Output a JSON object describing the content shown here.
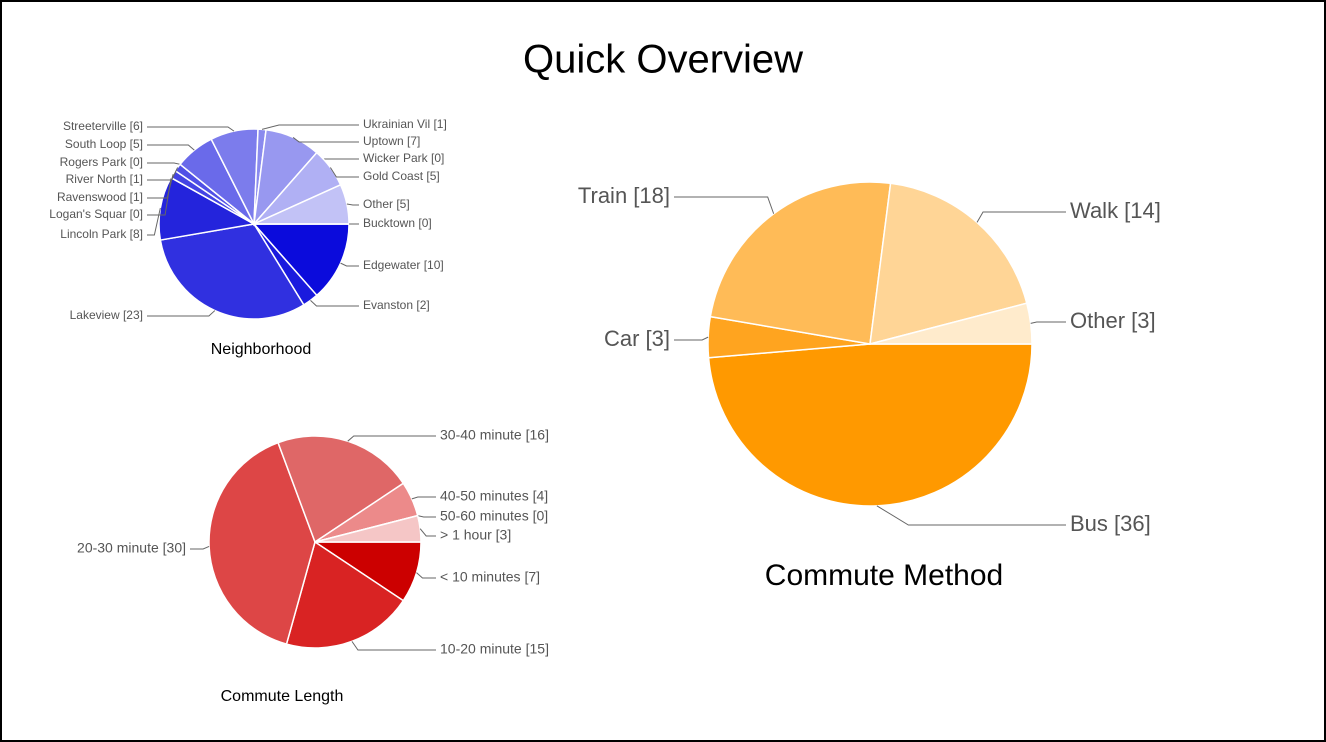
{
  "title": "Quick Overview",
  "chart_data": [
    {
      "type": "pie",
      "title": "Neighborhood",
      "categories": [
        "Edgewater [10]",
        "Evanston [2]",
        "Lakeview [23]",
        "Lincoln Park [8]",
        "Logan's Squar [0]",
        "Ravenswood [1]",
        "River North [1]",
        "Rogers Park [0]",
        "South Loop [5]",
        "Streeterville [6]",
        "Ukrainian Vil [1]",
        "Uptown [7]",
        "Wicker Park [0]",
        "Gold Coast [5]",
        "Other [5]",
        "Bucktown [0]"
      ],
      "values": [
        10,
        2,
        23,
        8,
        0,
        1,
        1,
        0,
        5,
        6,
        1,
        7,
        0,
        5,
        5,
        0
      ],
      "colors": [
        "#0b0bdc",
        "#1a1ade",
        "#3030e0",
        "#2424dc",
        "#3a3ae2",
        "#4444e4",
        "#5050e6",
        "#5a5ae8",
        "#6a6aea",
        "#7c7cec",
        "#8a8aee",
        "#9898f0",
        "#a4a4f2",
        "#b0b0f4",
        "#c2c2f6",
        "#d4d4f8"
      ]
    },
    {
      "type": "pie",
      "title": "Commute Method",
      "categories": [
        "Bus [36]",
        "Car [3]",
        "Train [18]",
        "Walk [14]",
        "Other [3]"
      ],
      "values": [
        36,
        3,
        18,
        14,
        3
      ],
      "colors": [
        "#ff9900",
        "#ffa41f",
        "#ffbb57",
        "#ffd596",
        "#ffebcc"
      ]
    },
    {
      "type": "pie",
      "title": "Commute Length",
      "categories": [
        "< 10 minutes [7]",
        "10-20 minute [15]",
        "20-30 minute [30]",
        "30-40 minute [16]",
        "40-50 minutes [4]",
        "50-60 minutes [0]",
        "> 1 hour [3]"
      ],
      "values": [
        7,
        15,
        30,
        16,
        4,
        0,
        3
      ],
      "colors": [
        "#cc0000",
        "#d92323",
        "#dd4646",
        "#df6767",
        "#ec8a8a",
        "#f0a8a8",
        "#f5c6c6"
      ]
    }
  ]
}
